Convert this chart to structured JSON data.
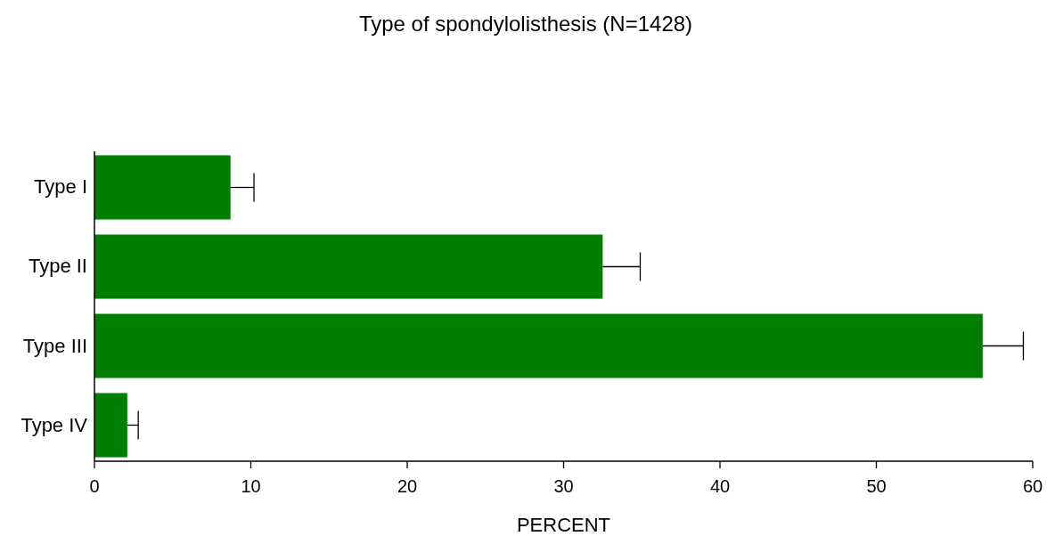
{
  "chart_data": {
    "type": "bar",
    "orientation": "horizontal",
    "title": "Type of spondylolisthesis (N=1428)",
    "xlabel": "PERCENT",
    "categories": [
      "Type I",
      "Type II",
      "Type III",
      "Type IV"
    ],
    "values": [
      8.7,
      32.5,
      56.8,
      2.1
    ],
    "errors": [
      [
        8.7,
        10.2
      ],
      [
        32.5,
        34.9
      ],
      [
        56.8,
        59.4
      ],
      [
        2.1,
        2.8
      ]
    ],
    "color": "#007f00",
    "xlim": [
      0,
      60
    ],
    "xticks": [
      0,
      10,
      20,
      30,
      40,
      50,
      60
    ],
    "grid": false
  }
}
